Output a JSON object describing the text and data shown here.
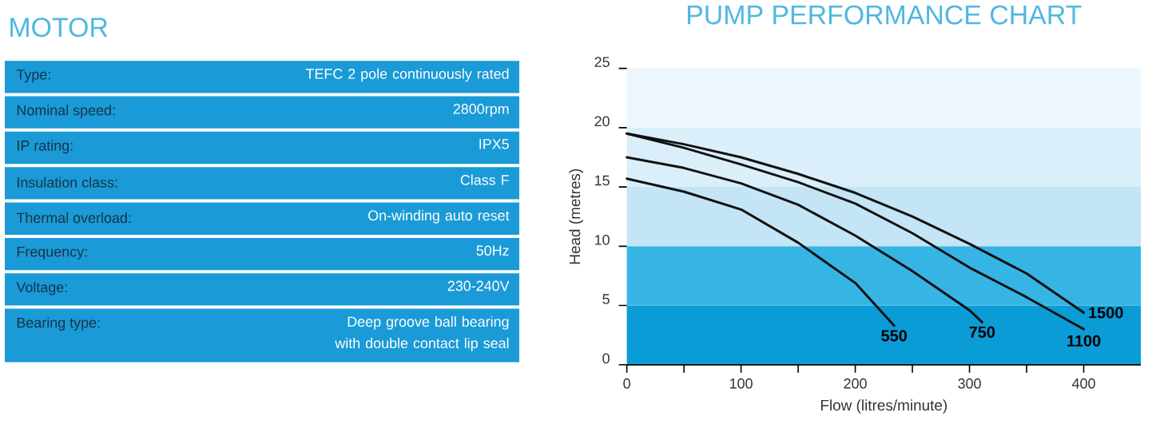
{
  "chart_data": [
    {
      "type": "other",
      "title": "MOTOR",
      "annotations": [
        "Type:",
        "TEFC 2 pole continuously rated",
        "Nominal speed:",
        "2800rpm",
        "IP rating:",
        "IPX5",
        "Insulation class:",
        "Class F",
        "Thermal overload:",
        "On-winding auto reset",
        "Frequency:",
        "50Hz",
        "Voltage:",
        "230-240V",
        "Bearing type:",
        "Deep groove ball bearing with double contact lip seal"
      ]
    },
    {
      "type": "line",
      "title": "PUMP PERFORMANCE CHART",
      "xlabel": "Flow (litres/minute)",
      "ylabel": "Head (metres)",
      "xlim": [
        0,
        450
      ],
      "ylim": [
        0,
        25
      ],
      "xticks": [
        0,
        {
          "value": 50,
          "label": null
        },
        100,
        {
          "value": 150,
          "label": null
        },
        200,
        {
          "value": 250,
          "label": null
        },
        300,
        {
          "value": 350,
          "label": null
        },
        400
      ],
      "yticks": [
        0,
        5,
        10,
        15,
        20,
        25
      ],
      "bands": [
        {
          "axis": "y",
          "from": 0,
          "to": 5,
          "color": "#0a9cd6"
        },
        {
          "axis": "y",
          "from": 5,
          "to": 10,
          "color": "#36b5e5"
        },
        {
          "axis": "y",
          "from": 10,
          "to": 15,
          "color": "#c3e5f5"
        },
        {
          "axis": "y",
          "from": 15,
          "to": 20,
          "color": "#daeffa"
        },
        {
          "axis": "y",
          "from": 20,
          "to": 25,
          "color": "#ecf6fc"
        }
      ],
      "series": [
        {
          "name": "550",
          "color": "#111111",
          "x": [
            0,
            50,
            100,
            150,
            200,
            234
          ],
          "values": [
            15.7,
            14.6,
            13.1,
            10.3,
            6.9,
            3.3
          ]
        },
        {
          "name": "750",
          "color": "#111111",
          "x": [
            0,
            50,
            100,
            150,
            200,
            250,
            300,
            311
          ],
          "values": [
            17.5,
            16.6,
            15.3,
            13.5,
            10.9,
            7.9,
            4.6,
            3.6
          ]
        },
        {
          "name": "1100",
          "color": "#111111",
          "x": [
            0,
            50,
            100,
            150,
            200,
            250,
            300,
            350,
            400
          ],
          "values": [
            19.5,
            18.3,
            16.9,
            15.4,
            13.6,
            11.1,
            8.2,
            5.7,
            3.0
          ]
        },
        {
          "name": "1500",
          "color": "#111111",
          "x": [
            0,
            50,
            100,
            150,
            200,
            250,
            300,
            350,
            400
          ],
          "values": [
            19.5,
            18.6,
            17.5,
            16.1,
            14.5,
            12.5,
            10.2,
            7.7,
            4.4
          ]
        }
      ]
    }
  ]
}
